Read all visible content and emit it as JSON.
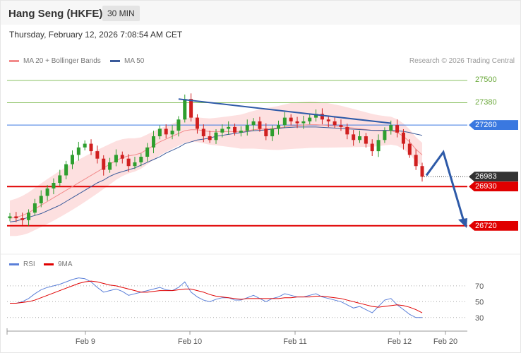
{
  "header": {
    "title": "Hang Seng (HKFE)",
    "interval": "30 MIN"
  },
  "timestamp": "Thursday, February 12, 2026 7:08:54 AM CET",
  "legend": {
    "bollinger": "MA 20 + Bollinger Bands",
    "ma50": "MA 50",
    "rsi": "RSI",
    "ma9": "9MA"
  },
  "copyright": "Research © 2026 Trading Central",
  "colors": {
    "bollinger": "#f28b8b",
    "ma50": "#3a5a9a",
    "bull": "#2e9e2e",
    "bear": "#d01f1f",
    "support": "#e00000",
    "resistance": "#3a78e0",
    "target": "#88c060",
    "arrow": "#2e5aa8",
    "current": "#333333"
  },
  "chart_data": [
    {
      "type": "line",
      "title": "",
      "subtitle": "",
      "x_ticks": [
        "Feb 9",
        "Feb 10",
        "Feb 11",
        "Feb 12",
        "Feb 20"
      ],
      "ylim": [
        26590,
        27560
      ],
      "price_labels": [
        {
          "value": 27500,
          "kind": "target",
          "label": "27500"
        },
        {
          "value": 27380,
          "kind": "target",
          "label": "27380"
        },
        {
          "value": 27260,
          "kind": "resistance",
          "label": "27260"
        },
        {
          "value": 26983,
          "kind": "current",
          "label": "26983"
        },
        {
          "value": 26930,
          "kind": "support",
          "label": "26930"
        },
        {
          "value": 26720,
          "kind": "support",
          "label": "26720"
        }
      ],
      "series": [
        {
          "name": "price",
          "values": [
            26770,
            26760,
            26750,
            26790,
            26840,
            26880,
            26920,
            26950,
            26990,
            27050,
            27100,
            27140,
            27160,
            27120,
            27080,
            27020,
            27060,
            27100,
            27080,
            27040,
            27060,
            27090,
            27140,
            27200,
            27240,
            27210,
            27230,
            27290,
            27400,
            27300,
            27240,
            27200,
            27180,
            27220,
            27240,
            27250,
            27220,
            27230,
            27260,
            27280,
            27240,
            27200,
            27240,
            27260,
            27300,
            27280,
            27270,
            27280,
            27300,
            27320,
            27290,
            27280,
            27260,
            27250,
            27210,
            27180,
            27200,
            27160,
            27120,
            27180,
            27230,
            27260,
            27220,
            27160,
            27100,
            27040,
            26983
          ]
        },
        {
          "name": "MA 50",
          "values": [
            26740,
            26745,
            26755,
            26765,
            26775,
            26785,
            26800,
            26815,
            26830,
            26850,
            26870,
            26890,
            26910,
            26930,
            26950,
            26965,
            26985,
            27000,
            27010,
            27020,
            27030,
            27045,
            27060,
            27075,
            27090,
            27110,
            27125,
            27140,
            27160,
            27170,
            27180,
            27185,
            27190,
            27200,
            27205,
            27210,
            27215,
            27220,
            27225,
            27230,
            27232,
            27234,
            27238,
            27242,
            27246,
            27248,
            27250,
            27250,
            27250,
            27250,
            27248,
            27246,
            27244,
            27242,
            27240,
            27238,
            27236,
            27234,
            27232,
            27232,
            27232,
            27232,
            27230,
            27226,
            27220,
            27212,
            27205
          ]
        },
        {
          "name": "MA 20",
          "values": [
            26760,
            26765,
            26775,
            26790,
            26810,
            26830,
            26850,
            26870,
            26890,
            26910,
            26930,
            26950,
            26970,
            26990,
            27010,
            27030,
            27050,
            27070,
            27085,
            27095,
            27100,
            27110,
            27130,
            27150,
            27170,
            27185,
            27200,
            27215,
            27230,
            27235,
            27235,
            27230,
            27225,
            27225,
            27225,
            27225,
            27225,
            27225,
            27230,
            27235,
            27238,
            27240,
            27242,
            27245,
            27250,
            27255,
            27258,
            27260,
            27262,
            27262,
            27260,
            27258,
            27255,
            27252,
            27248,
            27244,
            27240,
            27236,
            27232,
            27230,
            27230,
            27230,
            27220,
            27200,
            27170,
            27130,
            27100
          ]
        }
      ]
    },
    {
      "type": "line",
      "title": "",
      "x_ticks": [
        "Feb 9",
        "Feb 10",
        "Feb 11",
        "Feb 12",
        "Feb 20"
      ],
      "ylim": [
        20,
        85
      ],
      "y_ticks": [
        "70",
        "50",
        "30"
      ],
      "series": [
        {
          "name": "RSI",
          "values": [
            48,
            48,
            50,
            54,
            60,
            65,
            68,
            70,
            72,
            75,
            78,
            80,
            79,
            75,
            68,
            62,
            64,
            66,
            63,
            58,
            60,
            62,
            64,
            66,
            68,
            65,
            64,
            68,
            75,
            62,
            56,
            52,
            50,
            53,
            55,
            55,
            52,
            52,
            55,
            58,
            54,
            50,
            54,
            56,
            60,
            58,
            56,
            56,
            58,
            60,
            56,
            54,
            52,
            50,
            46,
            42,
            44,
            40,
            36,
            44,
            52,
            54,
            46,
            40,
            34,
            30,
            30
          ]
        },
        {
          "name": "9MA",
          "values": [
            48,
            48,
            49,
            50,
            52,
            55,
            58,
            61,
            64,
            67,
            70,
            73,
            75,
            76,
            75,
            73,
            71,
            70,
            68,
            66,
            64,
            62,
            62,
            63,
            64,
            64,
            64,
            65,
            66,
            66,
            64,
            62,
            59,
            57,
            56,
            55,
            54,
            53,
            54,
            54,
            54,
            54,
            54,
            54,
            55,
            55,
            56,
            56,
            56,
            57,
            57,
            56,
            55,
            54,
            52,
            50,
            48,
            46,
            44,
            43,
            44,
            45,
            46,
            45,
            43,
            40,
            36
          ]
        }
      ]
    }
  ]
}
